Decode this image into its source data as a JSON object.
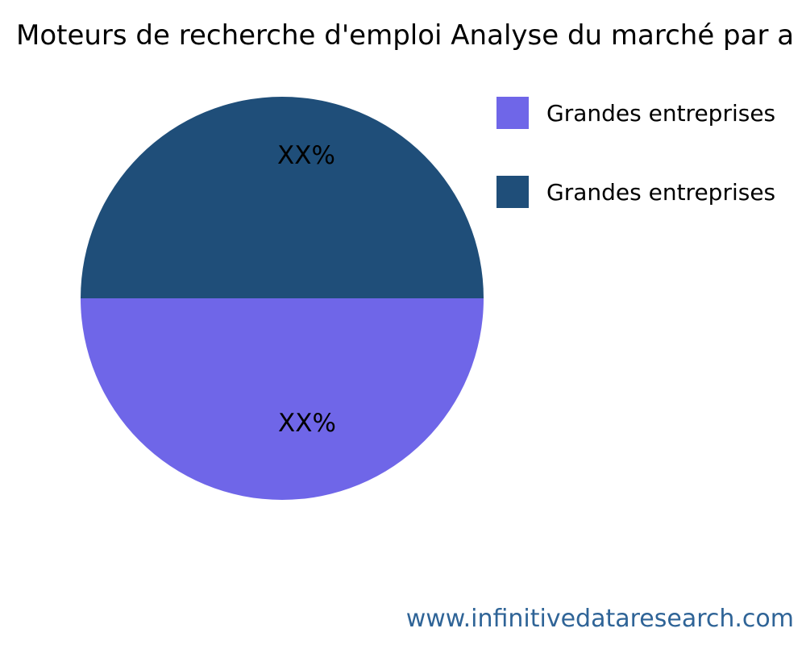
{
  "page": {
    "title": "Moteurs de recherche d'emploi Analyse du marché par a"
  },
  "chart_data": {
    "type": "pie",
    "title": "Moteurs de recherche d'emploi Analyse du marché par a",
    "series": [
      {
        "name": "Grandes entreprises",
        "value": 50,
        "display_label": "XX%",
        "color": "#6F66E8",
        "position": "bottom-half"
      },
      {
        "name": "Grandes entreprises",
        "value": 50,
        "display_label": "XX%",
        "color": "#1F4E79",
        "position": "top-half"
      }
    ],
    "values_shown_as": "XX%",
    "label_color": "#000000",
    "legend_position": "right",
    "background": "#FFFFFF"
  },
  "footer": {
    "url": "www.infinitivedataresearch.com",
    "color": "#2F6497"
  }
}
